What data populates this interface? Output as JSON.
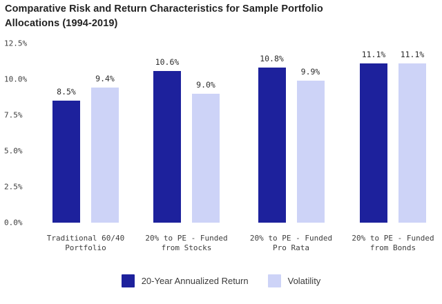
{
  "chart_data": {
    "type": "bar",
    "title": "Comparative Risk and Return Characteristics for Sample Portfolio Allocations (1994-2019)",
    "categories": [
      [
        "Traditional 60/40",
        "Portfolio"
      ],
      [
        "20% to PE - Funded",
        "from Stocks"
      ],
      [
        "20% to PE - Funded",
        "Pro Rata"
      ],
      [
        "20% to PE - Funded",
        "from Bonds"
      ]
    ],
    "series": [
      {
        "name": "20-Year Annualized Return",
        "color": "#1d219c",
        "values": [
          8.5,
          10.6,
          10.8,
          11.1
        ],
        "labels": [
          "8.5%",
          "10.6%",
          "10.8%",
          "11.1%"
        ]
      },
      {
        "name": "Volatility",
        "color": "#cdd3f7",
        "values": [
          9.4,
          9.0,
          9.9,
          11.1
        ],
        "labels": [
          "9.4%",
          "9.0%",
          "9.9%",
          "11.1%"
        ]
      }
    ],
    "y_axis": {
      "ticks": [
        {
          "value": 0,
          "label": "0.0%"
        },
        {
          "value": 2.5,
          "label": "2.5%"
        },
        {
          "value": 5,
          "label": "5.0%"
        },
        {
          "value": 7.5,
          "label": "7.5%"
        },
        {
          "value": 10,
          "label": "10.0%"
        },
        {
          "value": 12.5,
          "label": "12.5%"
        }
      ],
      "range": [
        0,
        12.65
      ]
    },
    "grid": false,
    "bar_value_labels": true,
    "legend_position": "bottom"
  },
  "legend": {
    "items": [
      {
        "label": "20-Year Annualized Return",
        "color": "#1d219c"
      },
      {
        "label": "Volatility",
        "color": "#cdd3f7"
      }
    ]
  }
}
